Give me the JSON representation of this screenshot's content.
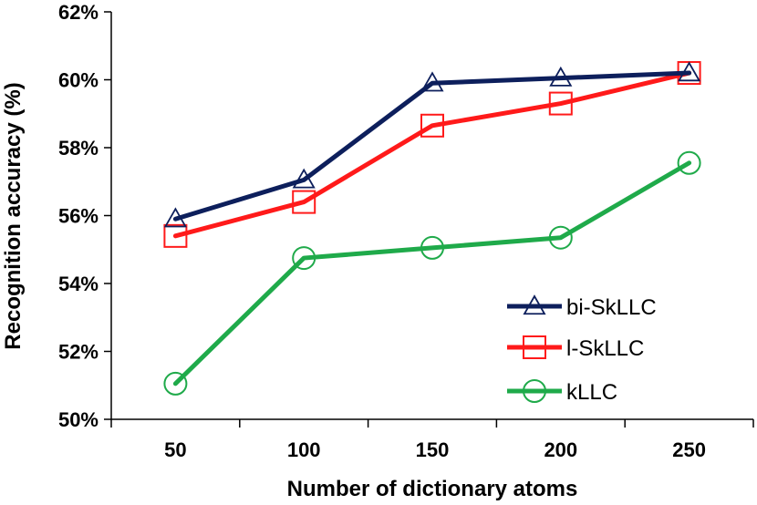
{
  "chart_data": {
    "type": "line",
    "title": "",
    "xlabel": "Number of dictionary atoms",
    "ylabel": "Recognition accuracy (%)",
    "categories": [
      "50",
      "100",
      "150",
      "200",
      "250"
    ],
    "ylim": [
      50,
      62
    ],
    "yticks": [
      50,
      52,
      54,
      56,
      58,
      60,
      62
    ],
    "ytick_labels": [
      "50%",
      "52%",
      "54%",
      "56%",
      "58%",
      "60%",
      "62%"
    ],
    "grid": false,
    "legend_position": "bottom-right",
    "series": [
      {
        "name": "bi-SkLLC",
        "values": [
          55.9,
          57.05,
          59.9,
          60.05,
          60.2
        ],
        "color": "#0d1f5c",
        "marker": "triangle"
      },
      {
        "name": "l-SkLLC",
        "values": [
          55.4,
          56.4,
          58.65,
          59.3,
          60.2
        ],
        "color": "#ff1a1a",
        "marker": "square"
      },
      {
        "name": "kLLC",
        "values": [
          51.05,
          54.75,
          55.05,
          55.35,
          57.55
        ],
        "color": "#1faa4a",
        "marker": "circle"
      }
    ]
  }
}
